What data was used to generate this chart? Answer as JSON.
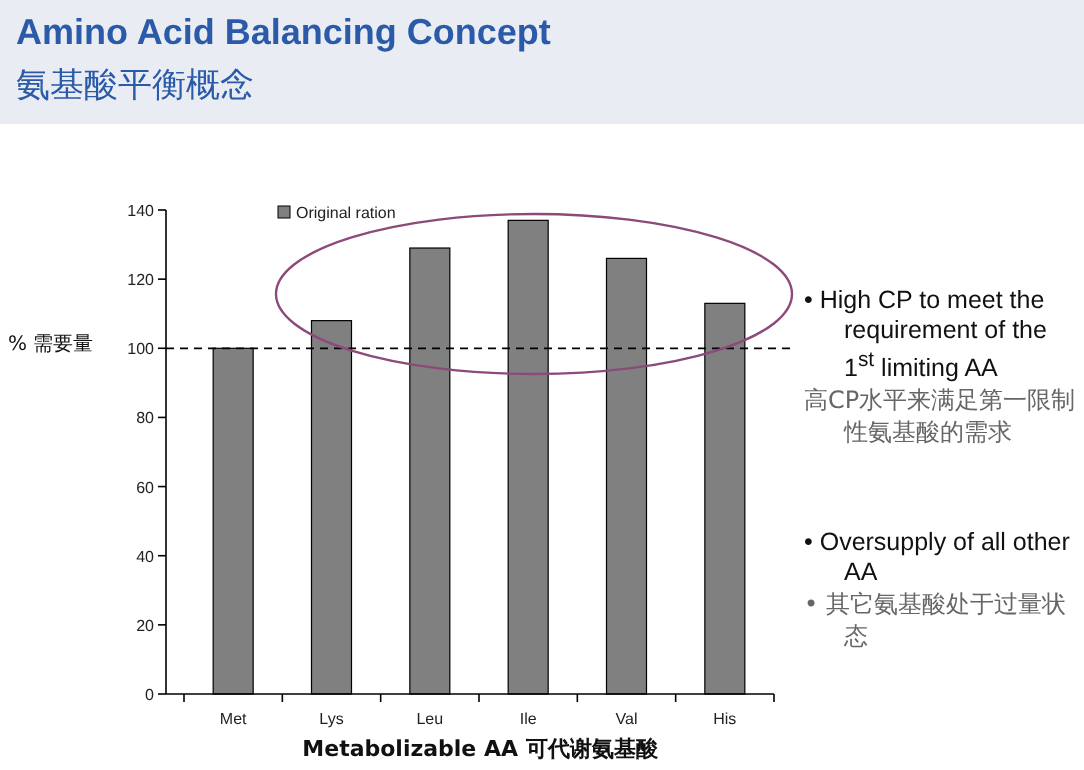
{
  "chart_data": {
    "type": "bar",
    "title": "Amino Acid Balancing Concept",
    "subtitle": "氨基酸平衡概念",
    "xlabel": "Metabolizable AA  可代谢氨基酸",
    "ylabel": "% 需要量",
    "categories": [
      "Met",
      "Lys",
      "Leu",
      "Ile",
      "Val",
      "His"
    ],
    "series": [
      {
        "name": "Original ration",
        "color": "#808080",
        "values": [
          100,
          108,
          129,
          137,
          126,
          113
        ]
      }
    ],
    "ylim": [
      0,
      140
    ],
    "yticks": [
      0,
      20,
      40,
      60,
      80,
      100,
      120,
      140
    ],
    "ref_lines": [
      {
        "axis": "y",
        "value": 100,
        "line_style": "dashed",
        "color": "#000000"
      }
    ],
    "legend": "top left",
    "annotations": [
      "•  High CP to meet the requirement of the 1$^{st}$ limiting AA",
      "高CP水平来满足第一限制性氨基酸的需求",
      "•  Oversupply of all other AA",
      "•  其它氨基酸处于过量状态"
    ]
  }
}
